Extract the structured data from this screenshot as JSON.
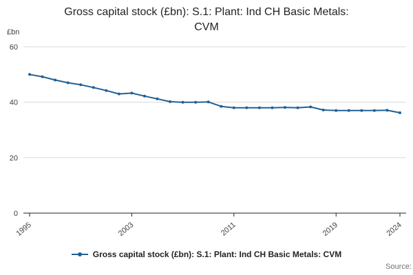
{
  "chart_data": {
    "type": "line",
    "title": "Gross capital stock (£bn): S.1: Plant: Ind CH Basic Metals:\nCVM",
    "xlabel": "",
    "ylabel": "£bn",
    "x": [
      1995,
      1996,
      1997,
      1998,
      1999,
      2000,
      2001,
      2002,
      2003,
      2004,
      2005,
      2006,
      2007,
      2008,
      2009,
      2010,
      2011,
      2012,
      2013,
      2014,
      2015,
      2016,
      2017,
      2018,
      2019,
      2020,
      2021,
      2022,
      2023,
      2024
    ],
    "series": [
      {
        "name": "Gross capital stock (£bn): S.1: Plant: Ind CH Basic Metals: CVM",
        "values": [
          50.0,
          49.2,
          48.0,
          47.0,
          46.3,
          45.3,
          44.2,
          43.0,
          43.3,
          42.2,
          41.2,
          40.2,
          40.0,
          40.0,
          40.1,
          38.5,
          38.0,
          38.0,
          38.0,
          38.0,
          38.1,
          38.0,
          38.3,
          37.2,
          37.0,
          37.0,
          37.0,
          37.0,
          37.1,
          36.2
        ]
      }
    ],
    "ylim": [
      0,
      60
    ],
    "yticks": [
      0,
      20,
      40,
      60
    ],
    "xticks": [
      1995,
      2003,
      2011,
      2019,
      2024
    ],
    "line_color": "#206095",
    "grid": true,
    "legend_position": "bottom"
  },
  "legend": {
    "label": "Gross capital stock (£bn): S.1: Plant: Ind CH Basic Metals: CVM"
  },
  "source": {
    "label": "Source:"
  }
}
